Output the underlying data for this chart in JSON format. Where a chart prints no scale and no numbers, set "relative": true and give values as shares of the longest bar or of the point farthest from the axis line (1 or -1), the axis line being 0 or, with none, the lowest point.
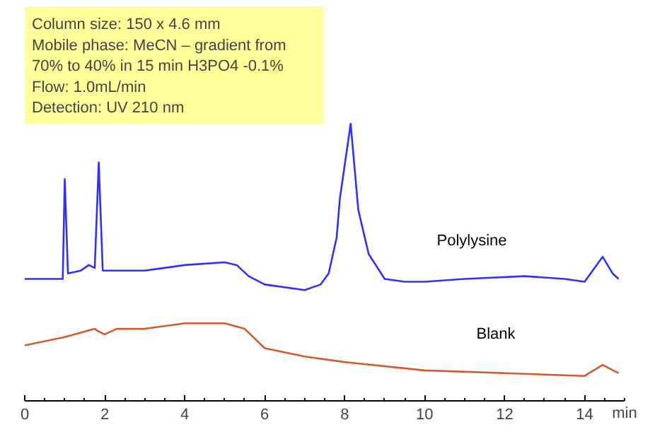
{
  "chart_data": {
    "type": "line",
    "relative": true,
    "xlabel": "min",
    "xlim": [
      0,
      15
    ],
    "xticks": [
      0,
      2,
      4,
      6,
      8,
      10,
      12,
      14
    ],
    "grid": false,
    "marker": "none",
    "line_style": "solid",
    "annotations": [
      "Column size: 150 x 4.6 mm",
      "Mobile phase: MeCN – gradient from",
      "70% to 40% in 15 min  H3PO4 -0.1%",
      "Flow: 1.0mL/min",
      "Detection: UV 210 nm"
    ],
    "series": [
      {
        "name": "Polylysine",
        "color": "#3030ff",
        "x": [
          0,
          0.95,
          1.0,
          1.08,
          1.4,
          1.6,
          1.75,
          1.85,
          1.95,
          2.5,
          3.0,
          3.5,
          4.0,
          5.0,
          5.3,
          5.6,
          6.0,
          7.0,
          7.4,
          7.6,
          7.8,
          7.88,
          8.15,
          8.34,
          8.6,
          9.0,
          9.5,
          10,
          11,
          12.5,
          13.5,
          14.0,
          14.3,
          14.45,
          14.7,
          14.85
        ],
        "values": [
          0.44,
          0.44,
          0.8,
          0.46,
          0.47,
          0.49,
          0.48,
          0.86,
          0.47,
          0.47,
          0.47,
          0.48,
          0.49,
          0.5,
          0.49,
          0.45,
          0.42,
          0.4,
          0.42,
          0.46,
          0.59,
          0.73,
          1.0,
          0.69,
          0.53,
          0.44,
          0.43,
          0.43,
          0.44,
          0.45,
          0.44,
          0.43,
          0.49,
          0.52,
          0.46,
          0.44
        ]
      },
      {
        "name": "Blank",
        "color": "#d45a2a",
        "x": [
          0,
          1,
          1.75,
          1.85,
          2.0,
          2.3,
          3.0,
          4.0,
          5.0,
          5.5,
          6.0,
          7.0,
          8.0,
          10,
          12,
          14.0,
          14.45,
          14.85
        ],
        "values": [
          0.2,
          0.23,
          0.26,
          0.25,
          0.24,
          0.26,
          0.26,
          0.28,
          0.28,
          0.26,
          0.19,
          0.16,
          0.14,
          0.11,
          0.1,
          0.09,
          0.13,
          0.1
        ]
      }
    ]
  }
}
